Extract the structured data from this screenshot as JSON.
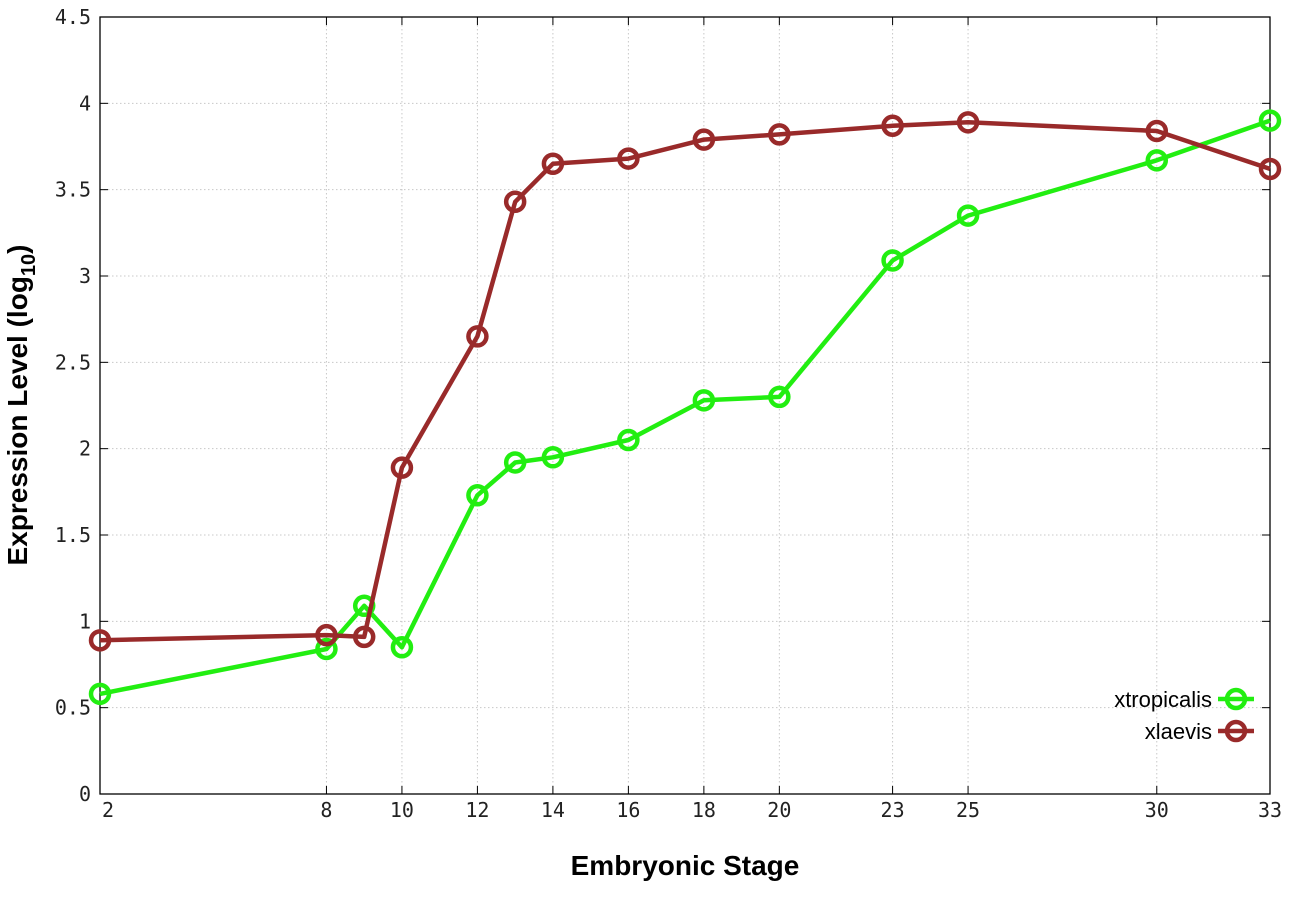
{
  "chart_data": {
    "type": "line",
    "xlabel": "Embryonic Stage",
    "ylabel": "Expression Level (log",
    "ylabel_sub": "10",
    "ylabel_close": ")",
    "x_ticks": [
      "2",
      "8",
      "10",
      "12",
      "14",
      "16",
      "18",
      "20",
      "23",
      "25",
      "30",
      "33"
    ],
    "y_ticks": [
      "0",
      "0.5",
      "1",
      "1.5",
      "2",
      "2.5",
      "3",
      "3.5",
      "4",
      "4.5"
    ],
    "ylim": [
      0,
      4.5
    ],
    "grid": true,
    "legend_position": "bottom-right",
    "x_positions": [
      {
        "label": "2",
        "pos": 0
      },
      {
        "label": "8",
        "pos": 6
      },
      {
        "label": "9",
        "pos": 7
      },
      {
        "label": "10",
        "pos": 8
      },
      {
        "label": "12",
        "pos": 10
      },
      {
        "label": "13",
        "pos": 11
      },
      {
        "label": "14",
        "pos": 12
      },
      {
        "label": "16",
        "pos": 14
      },
      {
        "label": "18",
        "pos": 16
      },
      {
        "label": "20",
        "pos": 18
      },
      {
        "label": "23",
        "pos": 21
      },
      {
        "label": "25",
        "pos": 23
      },
      {
        "label": "30",
        "pos": 28
      },
      {
        "label": "33",
        "pos": 31
      }
    ],
    "series": [
      {
        "name": "xtropicalis",
        "color": "#22ee11",
        "points": [
          {
            "x": 2,
            "y": 0.58
          },
          {
            "x": 8,
            "y": 0.84
          },
          {
            "x": 9,
            "y": 1.09
          },
          {
            "x": 10,
            "y": 0.85
          },
          {
            "x": 12,
            "y": 1.73
          },
          {
            "x": 13,
            "y": 1.92
          },
          {
            "x": 14,
            "y": 1.95
          },
          {
            "x": 16,
            "y": 2.05
          },
          {
            "x": 18,
            "y": 2.28
          },
          {
            "x": 20,
            "y": 2.3
          },
          {
            "x": 23,
            "y": 3.09
          },
          {
            "x": 25,
            "y": 3.35
          },
          {
            "x": 30,
            "y": 3.67
          },
          {
            "x": 33,
            "y": 3.9
          }
        ]
      },
      {
        "name": "xlaevis",
        "color": "#992a2a",
        "points": [
          {
            "x": 2,
            "y": 0.89
          },
          {
            "x": 8,
            "y": 0.92
          },
          {
            "x": 9,
            "y": 0.91
          },
          {
            "x": 10,
            "y": 1.89
          },
          {
            "x": 12,
            "y": 2.65
          },
          {
            "x": 13,
            "y": 3.43
          },
          {
            "x": 14,
            "y": 3.65
          },
          {
            "x": 16,
            "y": 3.68
          },
          {
            "x": 18,
            "y": 3.79
          },
          {
            "x": 20,
            "y": 3.82
          },
          {
            "x": 23,
            "y": 3.87
          },
          {
            "x": 25,
            "y": 3.89
          },
          {
            "x": 30,
            "y": 3.84
          },
          {
            "x": 33,
            "y": 3.62
          }
        ]
      }
    ]
  }
}
